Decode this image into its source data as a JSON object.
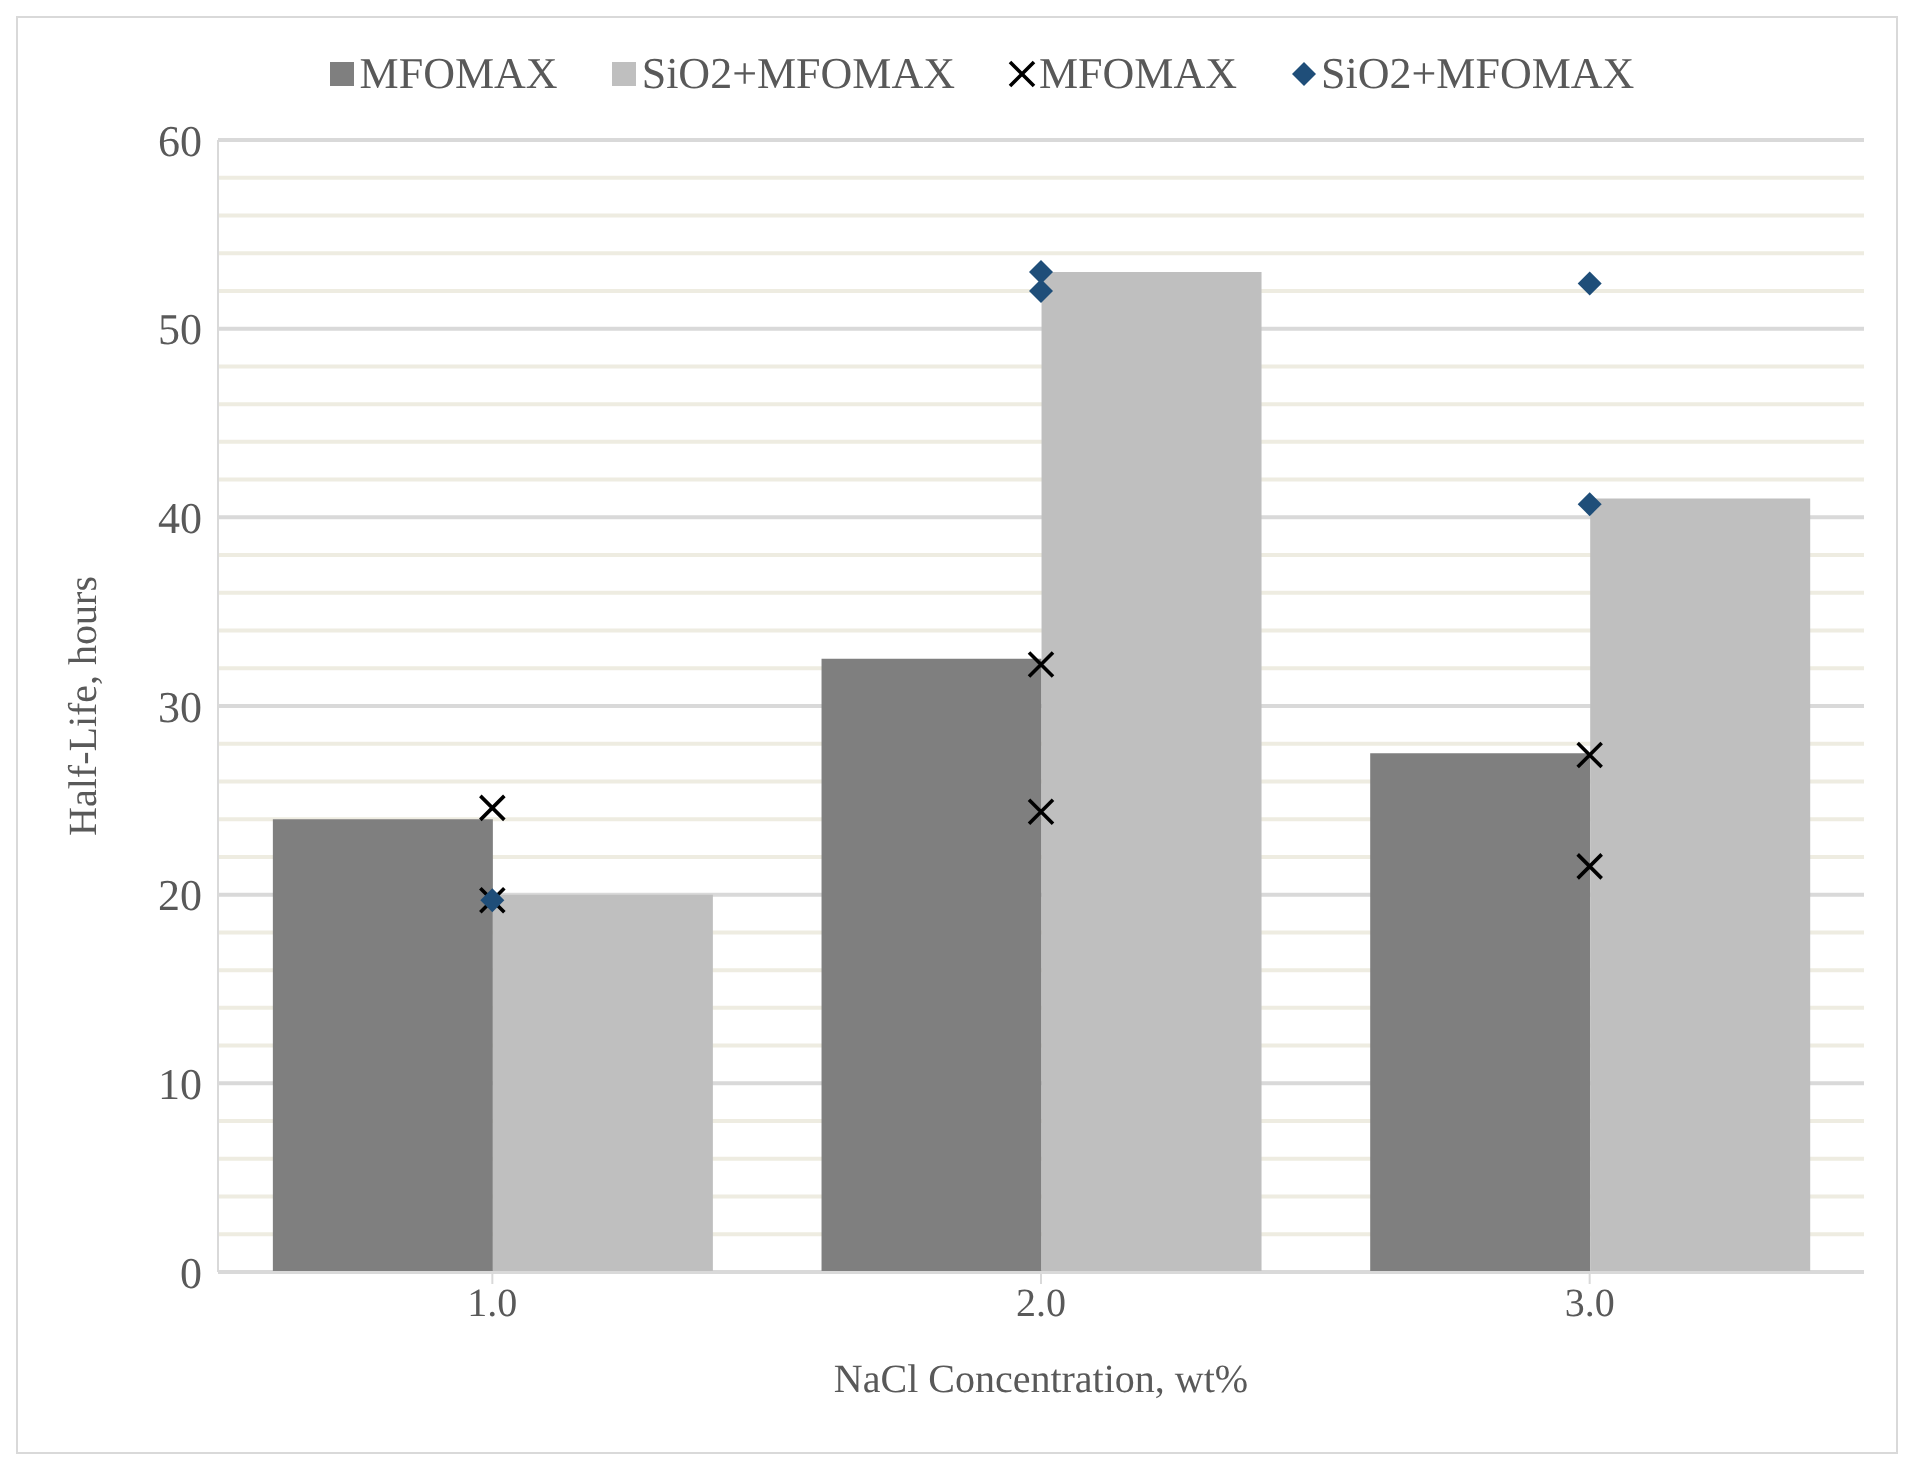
{
  "chart_data": {
    "type": "bar",
    "xlabel": "NaCl Concentration, wt%",
    "ylabel": "Half-Life, hours",
    "categories": [
      "1.0",
      "2.0",
      "3.0"
    ],
    "series": [
      {
        "name": "MFOMAX",
        "color": "#7f7f7f",
        "values": [
          24,
          32.5,
          27.5
        ]
      },
      {
        "name": "SiO2+MFOMAX",
        "color": "#bfbfbf",
        "values": [
          20,
          53,
          41
        ]
      },
      {
        "name": "MFOMAX",
        "type": "scatter",
        "color": "#000000",
        "marker": "cross",
        "x": [
          "1.0",
          "1.0",
          "2.0",
          "2.0",
          "3.0",
          "3.0"
        ],
        "values": [
          24.6,
          19.7,
          32.2,
          24.4,
          27.4,
          21.5
        ]
      },
      {
        "name": "SiO2+MFOMAX",
        "type": "scatter",
        "color": "#1f4e79",
        "marker": "diamond",
        "x": [
          "1.0",
          "2.0",
          "2.0",
          "3.0",
          "3.0"
        ],
        "values": [
          19.7,
          53,
          52,
          52.4,
          40.7
        ]
      }
    ],
    "ylim": [
      0,
      60
    ],
    "yticks": [
      0,
      {
        "value": 2,
        "label": null
      },
      {
        "value": 4,
        "label": null
      },
      {
        "value": 6,
        "label": null
      },
      {
        "value": 8,
        "label": null
      },
      10,
      {
        "value": 12,
        "label": null
      },
      {
        "value": 14,
        "label": null
      },
      {
        "value": 16,
        "label": null
      },
      {
        "value": 18,
        "label": null
      },
      20,
      {
        "value": 22,
        "label": null
      },
      {
        "value": 24,
        "label": null
      },
      {
        "value": 26,
        "label": null
      },
      {
        "value": 28,
        "label": null
      },
      30,
      {
        "value": 32,
        "label": null
      },
      {
        "value": 34,
        "label": null
      },
      {
        "value": 36,
        "label": null
      },
      {
        "value": 38,
        "label": null
      },
      40,
      {
        "value": 42,
        "label": null
      },
      {
        "value": 44,
        "label": null
      },
      {
        "value": 46,
        "label": null
      },
      {
        "value": 48,
        "label": null
      },
      50,
      {
        "value": 52,
        "label": null
      },
      {
        "value": 54,
        "label": null
      },
      {
        "value": 56,
        "label": null
      },
      {
        "value": 58,
        "label": null
      },
      60
    ],
    "grid": "y",
    "legend": "top"
  }
}
